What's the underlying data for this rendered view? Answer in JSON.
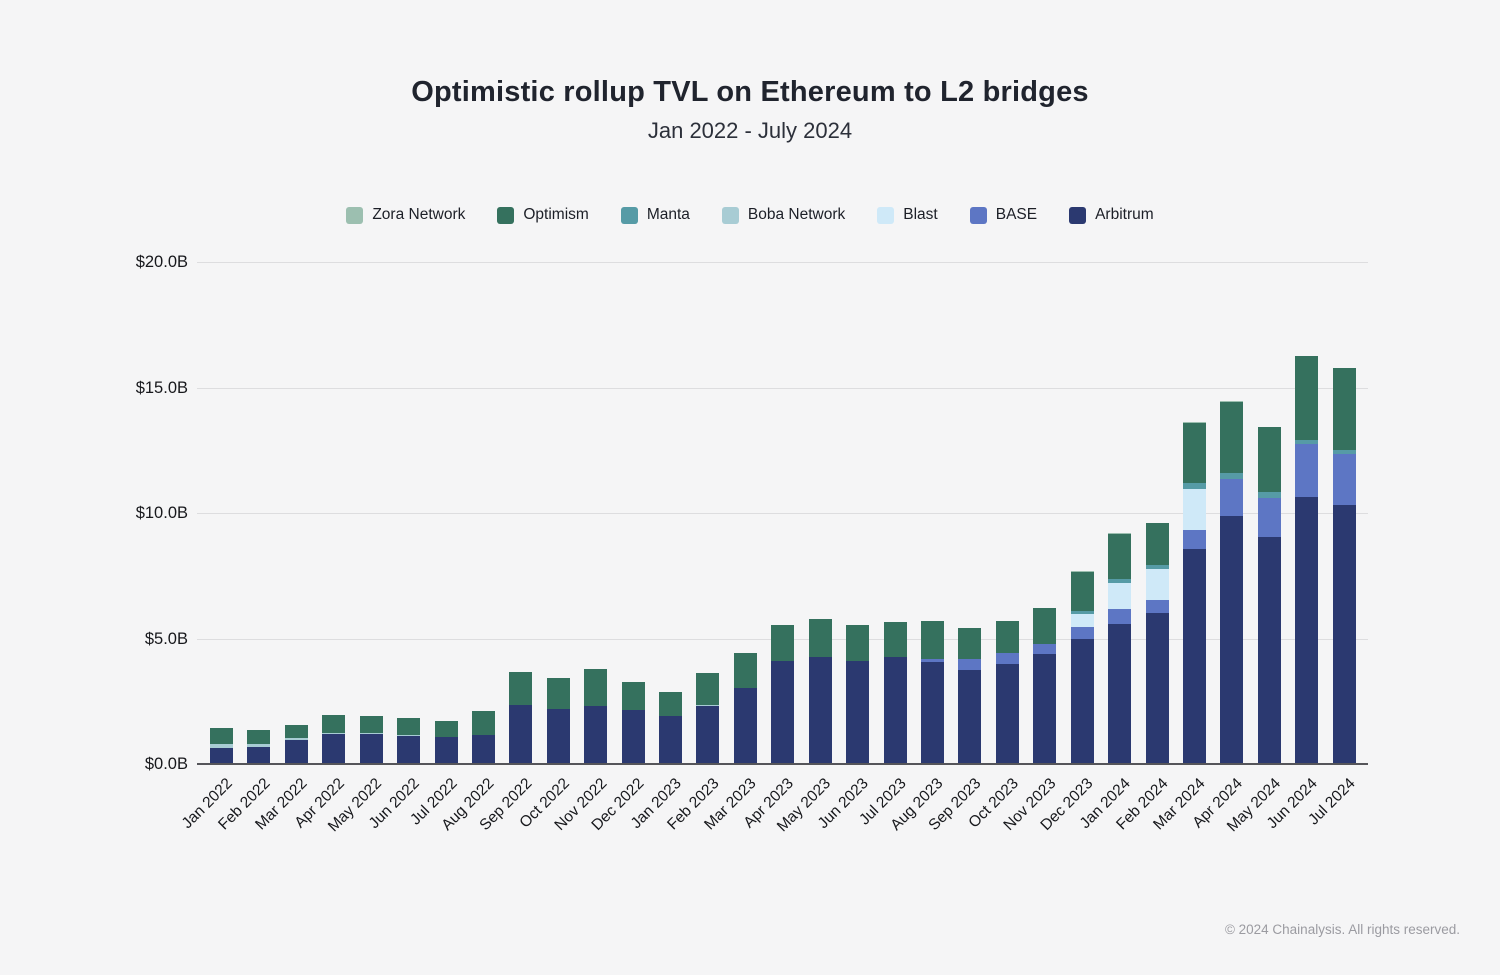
{
  "footer": {
    "copyright": "© 2024 Chainalysis. All rights reserved."
  },
  "chart_data": {
    "type": "bar",
    "variant": "stacked",
    "title": "Optimistic rollup TVL on Ethereum to L2 bridges",
    "subtitle": "Jan 2022 - July 2024",
    "ylabel": "",
    "xlabel": "",
    "unit": "USD billions",
    "ylim": [
      0,
      20
    ],
    "ytick_interval": 5,
    "yticks": [
      "$0.0B",
      "$5.0B",
      "$10.0B",
      "$15.0B",
      "$20.0B"
    ],
    "grid": "horizontal",
    "legend_position": "top",
    "legend_order": [
      "Zora Network",
      "Optimism",
      "Manta",
      "Boba Network",
      "Blast",
      "BASE",
      "Arbitrum"
    ],
    "categories": [
      "Jan 2022",
      "Feb 2022",
      "Mar 2022",
      "Apr 2022",
      "May 2022",
      "Jun 2022",
      "Jul 2022",
      "Aug 2022",
      "Sep 2022",
      "Oct 2022",
      "Nov 2022",
      "Dec 2022",
      "Jan 2023",
      "Feb 2023",
      "Mar 2023",
      "Apr 2023",
      "May 2023",
      "Jun 2023",
      "Jul 2023",
      "Aug 2023",
      "Sep 2023",
      "Oct 2023",
      "Nov 2023",
      "Dec 2023",
      "Jan 2024",
      "Feb 2024",
      "Mar 2024",
      "Apr 2024",
      "May 2024",
      "Jun 2024",
      "Jul 2024"
    ],
    "stack_order_note": "series listed bottom-to-top of stack; values in $B",
    "series": [
      {
        "name": "Arbitrum",
        "color": "#2b3970",
        "values": [
          0.69,
          0.73,
          0.98,
          1.23,
          1.23,
          1.16,
          1.1,
          1.19,
          2.39,
          2.22,
          2.35,
          2.2,
          1.96,
          2.35,
          3.07,
          4.13,
          4.31,
          4.13,
          4.3,
          4.1,
          3.78,
          4.02,
          4.42,
          5.02,
          5.62,
          6.04,
          8.61,
          9.92,
          9.07,
          10.69,
          10.36
        ]
      },
      {
        "name": "BASE",
        "color": "#5d76c4",
        "values": [
          0,
          0,
          0,
          0,
          0,
          0,
          0,
          0,
          0,
          0,
          0,
          0,
          0,
          0,
          0,
          0,
          0,
          0,
          0,
          0.12,
          0.44,
          0.43,
          0.4,
          0.47,
          0.6,
          0.53,
          0.76,
          1.46,
          1.55,
          2.09,
          2.03
        ]
      },
      {
        "name": "Blast",
        "color": "#cfe9f8",
        "values": [
          0,
          0,
          0,
          0,
          0,
          0,
          0,
          0,
          0,
          0,
          0,
          0,
          0,
          0,
          0,
          0,
          0,
          0,
          0,
          0,
          0,
          0,
          0,
          0.53,
          1.04,
          1.24,
          1.63,
          0,
          0,
          0,
          0
        ]
      },
      {
        "name": "Boba Network",
        "color": "#a8ccd4",
        "values": [
          0.16,
          0.09,
          0.1,
          0.05,
          0.04,
          0.03,
          0.02,
          0.02,
          0,
          0,
          0,
          0,
          0,
          0.06,
          0,
          0,
          0,
          0,
          0,
          0,
          0,
          0,
          0,
          0,
          0,
          0,
          0,
          0,
          0,
          0,
          0
        ]
      },
      {
        "name": "Manta",
        "color": "#569ba6",
        "values": [
          0,
          0,
          0,
          0,
          0,
          0,
          0,
          0,
          0,
          0,
          0,
          0,
          0,
          0,
          0,
          0,
          0,
          0,
          0,
          0,
          0,
          0,
          0,
          0.12,
          0.16,
          0.16,
          0.23,
          0.24,
          0.26,
          0.17,
          0.16
        ]
      },
      {
        "name": "Optimism",
        "color": "#35715e",
        "values": [
          0.61,
          0.59,
          0.53,
          0.7,
          0.67,
          0.67,
          0.64,
          0.93,
          1.31,
          1.23,
          1.47,
          1.09,
          0.96,
          1.25,
          1.38,
          1.43,
          1.5,
          1.45,
          1.38,
          1.53,
          1.22,
          1.29,
          1.45,
          1.57,
          1.78,
          1.66,
          2.39,
          2.85,
          2.57,
          3.33,
          3.25
        ]
      },
      {
        "name": "Zora Network",
        "color": "#9cbfb0",
        "values": [
          0,
          0,
          0,
          0,
          0,
          0,
          0,
          0,
          0,
          0,
          0,
          0,
          0,
          0,
          0,
          0,
          0,
          0,
          0,
          0,
          0,
          0,
          0,
          0.02,
          0.03,
          0.03,
          0.03,
          0.03,
          0.03,
          0.03,
          0.03
        ]
      }
    ]
  }
}
